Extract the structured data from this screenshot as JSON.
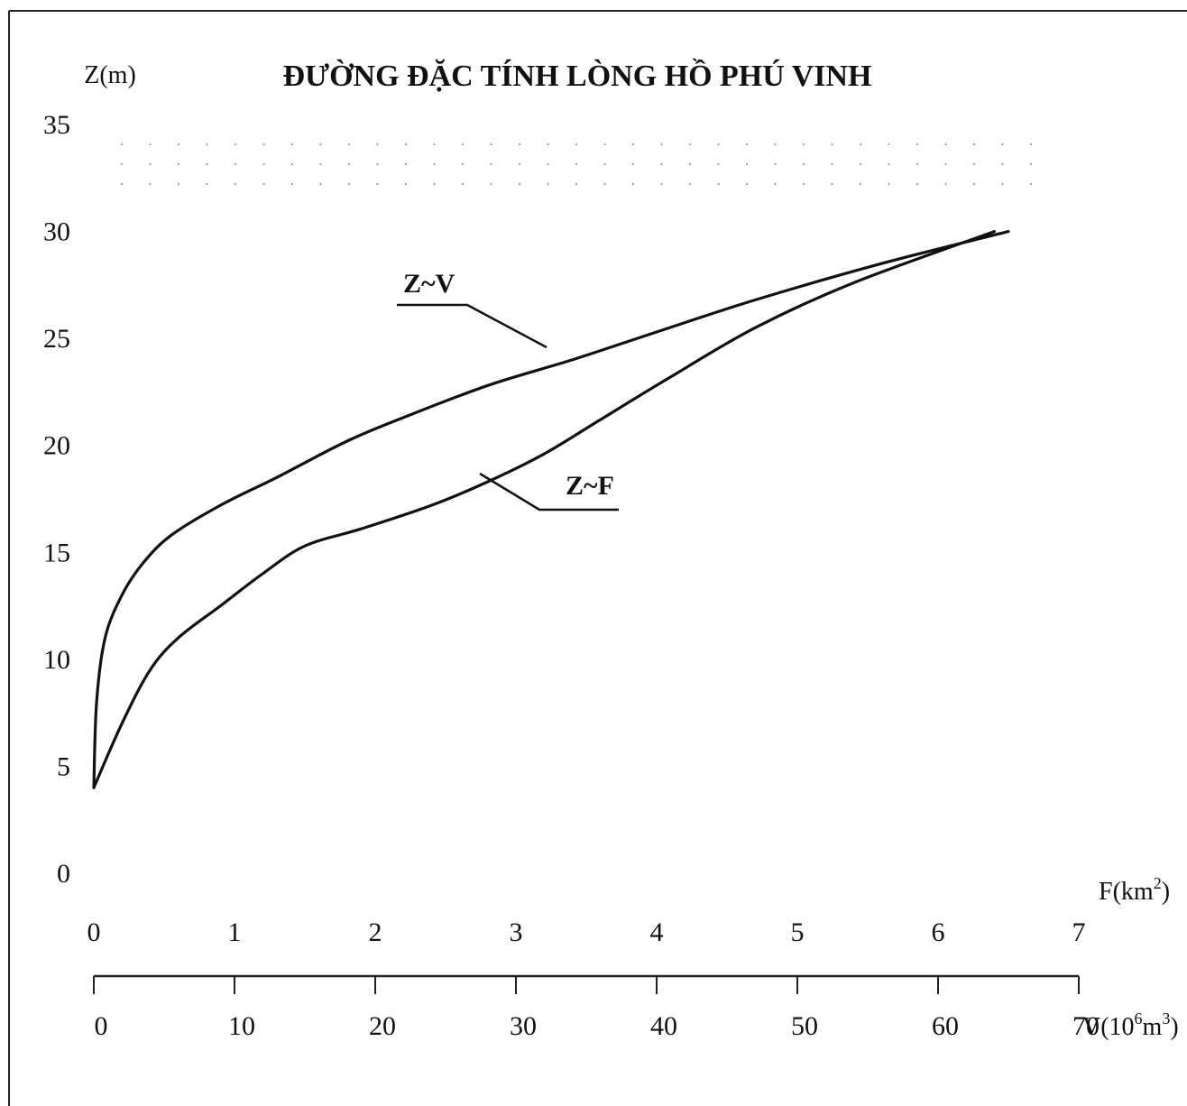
{
  "chart_data": {
    "type": "line",
    "title": "ĐƯỜNG ĐẶC TÍNH LÒNG HỒ PHÚ VINH",
    "ylabel": "Z(m)",
    "ylim": [
      0,
      35
    ],
    "yticks": [
      "0",
      "5",
      "10",
      "15",
      "20",
      "25",
      "30",
      "35"
    ],
    "x_axes": [
      {
        "label": "F(km²)",
        "label_main": "F(km",
        "label_sup": "2",
        "label_end": ")",
        "range": [
          0,
          7
        ],
        "ticks": [
          "0",
          "1",
          "2",
          "3",
          "4",
          "5",
          "6",
          "7"
        ]
      },
      {
        "label": "V(10⁶m³)",
        "label_main": "V(10",
        "label_sup1": "6",
        "label_mid": "m",
        "label_sup2": "3",
        "label_end": ")",
        "range": [
          0,
          70
        ],
        "ticks": [
          "0",
          "10",
          "20",
          "30",
          "40",
          "50",
          "60",
          "70"
        ]
      }
    ],
    "grid": false,
    "series": [
      {
        "name": "Z~V",
        "x_axis": "V",
        "points": [
          [
            0,
            4
          ],
          [
            0.2,
            8
          ],
          [
            0.8,
            11
          ],
          [
            2,
            13
          ],
          [
            3.5,
            14.5
          ],
          [
            5.5,
            15.8
          ],
          [
            9,
            17.2
          ],
          [
            13,
            18.5
          ],
          [
            18,
            20.2
          ],
          [
            22,
            21.3
          ],
          [
            28,
            22.8
          ],
          [
            34,
            24
          ],
          [
            40,
            25.3
          ],
          [
            47,
            26.8
          ],
          [
            56,
            28.5
          ],
          [
            65,
            30
          ]
        ]
      },
      {
        "name": "Z~F",
        "x_axis": "F",
        "points": [
          [
            0,
            4
          ],
          [
            0.2,
            7
          ],
          [
            0.4,
            9.5
          ],
          [
            0.6,
            11
          ],
          [
            0.9,
            12.5
          ],
          [
            1.2,
            14
          ],
          [
            1.5,
            15.3
          ],
          [
            1.9,
            16.1
          ],
          [
            2.4,
            17.2
          ],
          [
            2.8,
            18.3
          ],
          [
            3.2,
            19.6
          ],
          [
            3.6,
            21.2
          ],
          [
            4.1,
            23.2
          ],
          [
            4.7,
            25.5
          ],
          [
            5.4,
            27.6
          ],
          [
            6.4,
            30
          ]
        ]
      }
    ]
  }
}
